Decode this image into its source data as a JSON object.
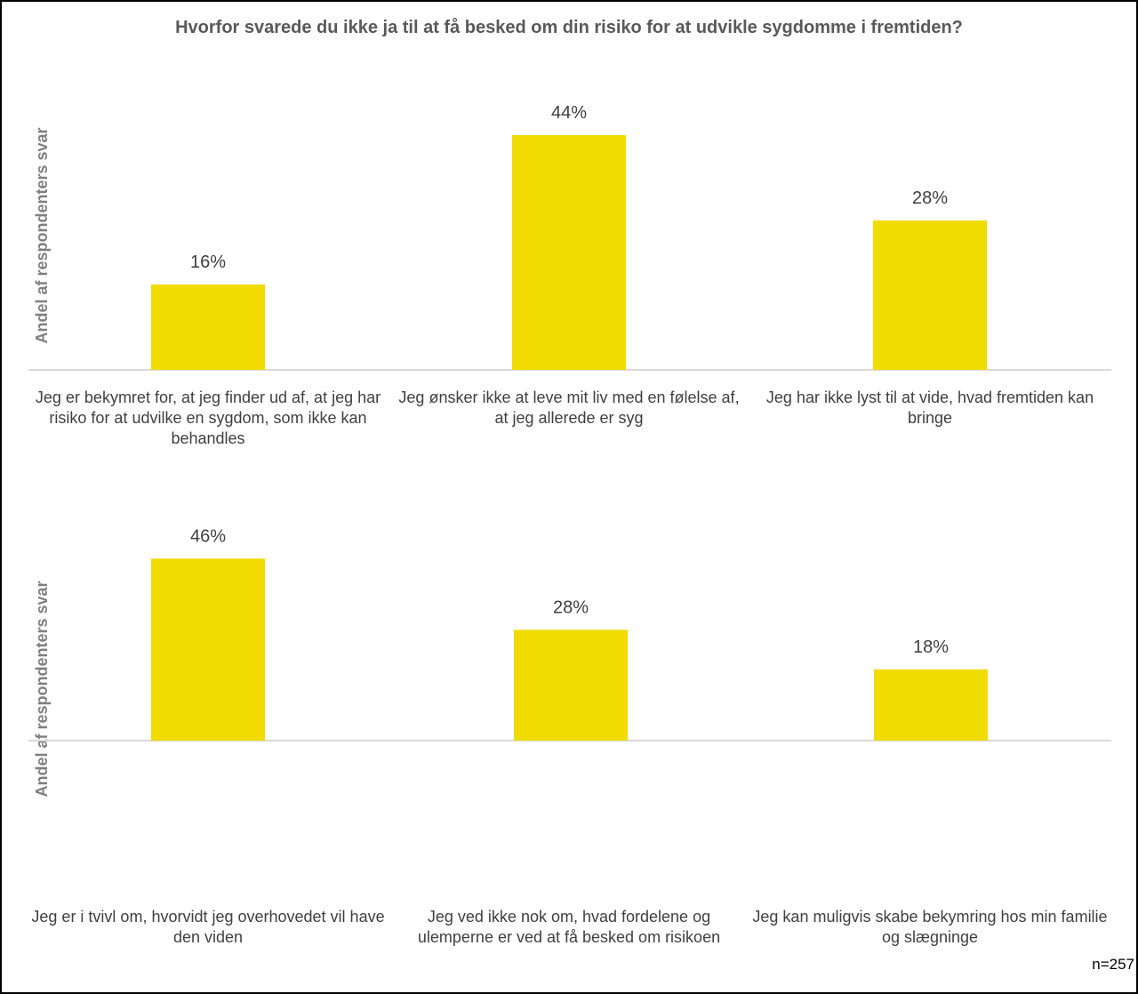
{
  "title": "Hvorfor svarede du ikke ja til at få besked om din risiko for at udvikle sygdomme i fremtiden?",
  "footnote": "n=257",
  "colors": {
    "bar": "#F0DC00",
    "axis": "#D9D9D9",
    "label": "#404040",
    "title": "#595959",
    "ylabel": "#7F7F7F"
  },
  "chart_data": [
    {
      "type": "bar",
      "ylabel": "Andel af respondenters svar",
      "ylim": [
        0,
        0.5
      ],
      "grid": false,
      "categories": [
        "Jeg er bekymret for, at jeg finder ud af, at jeg har risiko for at udvilke en sygdom, som ikke kan behandles",
        "Jeg ønsker ikke at leve mit liv med en følelse af, at jeg allerede er syg",
        "Jeg har ikke lyst til at vide, hvad fremtiden kan bringe"
      ],
      "values": [
        0.16,
        0.44,
        0.28
      ],
      "data_labels": [
        "16%",
        "44%",
        "28%"
      ]
    },
    {
      "type": "bar",
      "ylabel": "Andel af respondenters svar",
      "ylim": [
        0,
        0.5
      ],
      "grid": false,
      "categories": [
        "Jeg er i tvivl om, hvorvidt jeg overhovedet vil have den viden",
        "Jeg ved ikke nok om, hvad fordelene og ulemperne er ved at få besked om risikoen",
        "Jeg kan muligvis skabe bekymring hos min familie og slægninge"
      ],
      "values": [
        0.46,
        0.28,
        0.18
      ],
      "data_labels": [
        "46%",
        "28%",
        "18%"
      ]
    }
  ]
}
